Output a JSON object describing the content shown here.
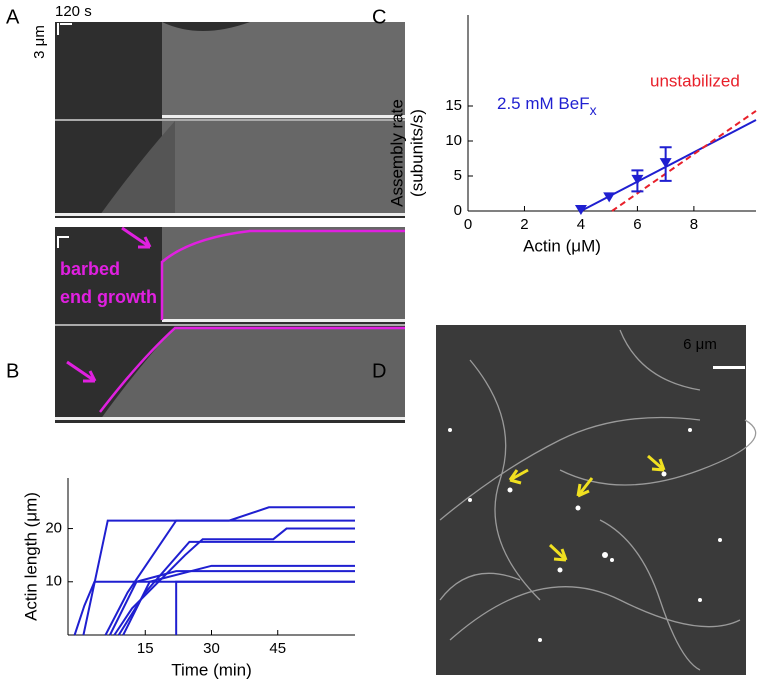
{
  "panel_a": {
    "label": "A",
    "time_scale": "120 s",
    "length_scale": "3 μm",
    "annotation": [
      "barbed",
      "end growth"
    ]
  },
  "panel_d": {
    "label": "D",
    "scale": "6 μm"
  },
  "chart_data": [
    {
      "type": "line",
      "panel": "B",
      "xlabel": "Time (min)",
      "ylabel": "Actin length (μm)",
      "xlim": [
        -2.5,
        62.5
      ],
      "ylim": [
        0,
        29.5
      ],
      "xticks": [
        15,
        30,
        45
      ],
      "yticks": [
        10,
        20
      ],
      "color": "#1f1fd0",
      "series": [
        {
          "x": [
            -1,
            1.2,
            3.5,
            62.5
          ],
          "values": [
            0,
            5.5,
            10,
            10
          ]
        },
        {
          "x": [
            1,
            6.5,
            34,
            43,
            62.5
          ],
          "values": [
            0,
            21.5,
            21.5,
            24,
            24
          ]
        },
        {
          "x": [
            6,
            11,
            22,
            62.5
          ],
          "values": [
            0,
            8,
            21.5,
            21.5
          ]
        },
        {
          "x": [
            7,
            13,
            22,
            62.5
          ],
          "values": [
            0,
            10,
            12,
            12
          ]
        },
        {
          "x": [
            8,
            12,
            24,
            28,
            44,
            47,
            62.5
          ],
          "values": [
            0,
            5,
            15,
            18,
            18,
            20,
            20
          ]
        },
        {
          "x": [
            22,
            22,
            62.5
          ],
          "values": [
            0,
            10,
            10
          ]
        },
        {
          "x": [
            10,
            16,
            30,
            62.5
          ],
          "values": [
            0,
            10,
            13,
            13
          ]
        },
        {
          "x": [
            9,
            15,
            25,
            62.5
          ],
          "values": [
            0,
            8,
            17.5,
            17.5
          ]
        }
      ]
    },
    {
      "type": "scatter",
      "panel": "C",
      "xlabel": "Actin (μM)",
      "ylabel": [
        "Assembly rate",
        "(subunits/s)"
      ],
      "xlim": [
        0,
        10.2
      ],
      "ylim": [
        0,
        28
      ],
      "xticks": [
        0,
        2,
        4,
        6,
        8
      ],
      "yticks": [
        0,
        5,
        10,
        15
      ],
      "points": {
        "name": "2.5 mM BeF",
        "name_sub": "x",
        "color": "#1f1fd0",
        "x": [
          4,
          5,
          6,
          7
        ],
        "values": [
          0,
          1.8,
          4.3,
          6.7
        ],
        "errors": [
          null,
          null,
          1.5,
          2.4
        ]
      },
      "fits": [
        {
          "color": "#1f1fd0",
          "dashed": false,
          "x": [
            4,
            10.2
          ],
          "values": [
            0,
            13
          ]
        },
        {
          "name": "unstabilized",
          "color": "#e8202a",
          "dashed": true,
          "x": [
            5.1,
            10.2
          ],
          "values": [
            0,
            14.3
          ]
        }
      ]
    }
  ]
}
